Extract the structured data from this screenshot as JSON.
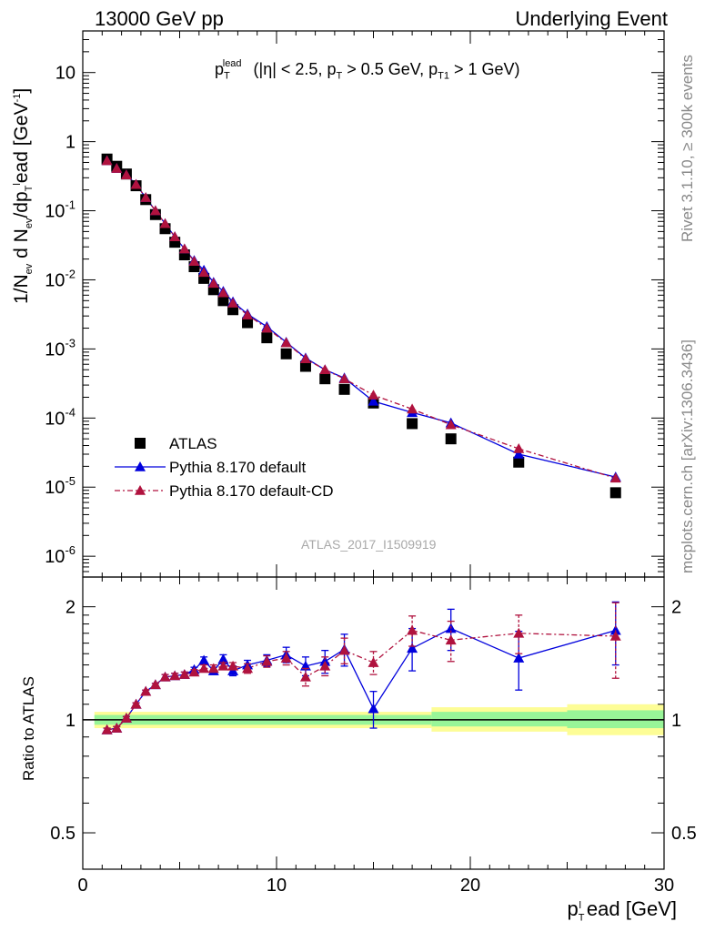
{
  "header": {
    "left": "13000 GeV pp",
    "right": "Underlying Event"
  },
  "side_labels": {
    "rivet": "Rivet 3.1.10, ≥ 300k events",
    "mcplots": "mcplots.cern.ch [arXiv:1306.3436]"
  },
  "annotation": {
    "main": "p",
    "sub": "T",
    "sup": "lead",
    "cuts": " (|η| < 2.5, p",
    "cuts_sub1": "T",
    "cuts_mid": " > 0.5 GeV, p",
    "cuts_sub2": "T1",
    "cuts_end": " > 1 GeV)"
  },
  "watermark": "ATLAS_2017_I1509919",
  "axes": {
    "main_ylabel_a": "1/N",
    "main_ylabel_b": "ev",
    "main_ylabel_c": " d N",
    "main_ylabel_d": "ev",
    "main_ylabel_e": "/dp",
    "main_ylabel_f": "T",
    "main_ylabel_g": "l",
    "main_ylabel_h": "ead [GeV",
    "main_ylabel_i": "-1",
    "main_ylabel_j": "]",
    "ratio_ylabel": "Ratio to ATLAS",
    "xlabel_a": "p",
    "xlabel_sub": "T",
    "xlabel_sup": "l",
    "xlabel_b": "ead [GeV]"
  },
  "legend": [
    {
      "label": "ATLAS",
      "color": "#000000",
      "marker": "square"
    },
    {
      "label": "Pythia 8.170 default",
      "color": "#0000dd",
      "marker": "triangle",
      "line": "solid"
    },
    {
      "label": "Pythia 8.170 default-CD",
      "color": "#b0123e",
      "marker": "triangle",
      "line": "dashdot"
    }
  ],
  "chart_data": [
    {
      "type": "scatter",
      "panel": "main",
      "yscale": "log",
      "xlim": [
        0,
        30
      ],
      "ylim": [
        5e-07,
        40
      ],
      "x_ticks": [
        0,
        10,
        20,
        30
      ],
      "y_ticks": [
        "10^-6",
        "10^-5",
        "10^-4",
        "10^-3",
        "10^-2",
        "10^-1",
        "1",
        "10"
      ],
      "y_tick_values": [
        1e-06,
        1e-05,
        0.0001,
        0.001,
        0.01,
        0.1,
        1,
        10
      ],
      "x": [
        1.25,
        1.75,
        2.25,
        2.75,
        3.25,
        3.75,
        4.25,
        4.75,
        5.25,
        5.75,
        6.25,
        6.75,
        7.25,
        7.75,
        8.5,
        9.5,
        10.5,
        11.5,
        12.5,
        13.5,
        15,
        17,
        19,
        22.5,
        27.5
      ],
      "series": [
        {
          "name": "ATLAS",
          "color": "#000000",
          "values": [
            0.56,
            0.44,
            0.34,
            0.23,
            0.145,
            0.088,
            0.055,
            0.035,
            0.023,
            0.0155,
            0.0105,
            0.0072,
            0.005,
            0.0037,
            0.0024,
            0.00145,
            0.00085,
            0.00056,
            0.00037,
            0.00026,
            0.000165,
            8.3e-05,
            5e-05,
            2.3e-05,
            8.3e-06
          ]
        },
        {
          "name": "Pythia 8.170 default",
          "color": "#0000dd",
          "values": [
            0.53,
            0.41,
            0.33,
            0.24,
            0.155,
            0.1,
            0.065,
            0.042,
            0.028,
            0.019,
            0.0138,
            0.0092,
            0.0068,
            0.0048,
            0.0032,
            0.0021,
            0.00125,
            0.00074,
            0.0005,
            0.00038,
            0.000175,
            0.00012,
            8.5e-05,
            3e-05,
            1.4e-05
          ]
        },
        {
          "name": "Pythia 8.170 default-CD",
          "color": "#b0123e",
          "values": [
            0.53,
            0.41,
            0.33,
            0.24,
            0.155,
            0.1,
            0.065,
            0.042,
            0.028,
            0.0185,
            0.0128,
            0.0089,
            0.0065,
            0.0046,
            0.0031,
            0.002,
            0.00123,
            0.00072,
            0.0005,
            0.00037,
            0.000215,
            0.000135,
            8e-05,
            3.6e-05,
            1.35e-05
          ]
        }
      ]
    },
    {
      "type": "scatter",
      "panel": "ratio",
      "yscale": "log",
      "xlim": [
        0,
        30
      ],
      "ylim": [
        0.4,
        2.4
      ],
      "ylabel": "Ratio to ATLAS",
      "y_ticks": [
        "0.5",
        "1",
        "2"
      ],
      "y_tick_values": [
        0.5,
        1,
        2
      ],
      "x": [
        1.25,
        1.75,
        2.25,
        2.75,
        3.25,
        3.75,
        4.25,
        4.75,
        5.25,
        5.75,
        6.25,
        6.75,
        7.25,
        7.75,
        8.5,
        9.5,
        10.5,
        11.5,
        12.5,
        13.5,
        15,
        17,
        19,
        22.5,
        27.5
      ],
      "series": [
        {
          "name": "Pythia 8.170 default",
          "color": "#0000dd",
          "values": [
            0.94,
            0.95,
            1.01,
            1.1,
            1.19,
            1.24,
            1.3,
            1.31,
            1.32,
            1.36,
            1.44,
            1.35,
            1.45,
            1.35,
            1.4,
            1.44,
            1.49,
            1.39,
            1.43,
            1.54,
            1.07,
            1.55,
            1.75,
            1.46,
            1.73
          ],
          "errors": [
            0.01,
            0.01,
            0.01,
            0.01,
            0.01,
            0.01,
            0.02,
            0.02,
            0.02,
            0.02,
            0.03,
            0.03,
            0.04,
            0.04,
            0.04,
            0.05,
            0.07,
            0.08,
            0.1,
            0.15,
            0.12,
            0.2,
            0.22,
            0.26,
            0.33
          ]
        },
        {
          "name": "Pythia 8.170 default-CD",
          "color": "#b0123e",
          "values": [
            0.94,
            0.95,
            1.01,
            1.1,
            1.19,
            1.24,
            1.3,
            1.31,
            1.32,
            1.34,
            1.37,
            1.37,
            1.39,
            1.39,
            1.37,
            1.43,
            1.46,
            1.3,
            1.39,
            1.53,
            1.42,
            1.73,
            1.63,
            1.7,
            1.67
          ],
          "errors": [
            0.01,
            0.01,
            0.01,
            0.01,
            0.01,
            0.01,
            0.02,
            0.02,
            0.02,
            0.02,
            0.03,
            0.03,
            0.03,
            0.03,
            0.04,
            0.05,
            0.06,
            0.07,
            0.08,
            0.12,
            0.1,
            0.16,
            0.2,
            0.2,
            0.38
          ]
        }
      ],
      "bands": [
        {
          "x0": 0.6,
          "x1": 18,
          "yellow": [
            0.95,
            1.05
          ],
          "green": [
            0.97,
            1.03
          ]
        },
        {
          "x0": 18,
          "x1": 25,
          "yellow": [
            0.93,
            1.08
          ],
          "green": [
            0.96,
            1.05
          ]
        },
        {
          "x0": 25,
          "x1": 30,
          "yellow": [
            0.91,
            1.1
          ],
          "green": [
            0.95,
            1.06
          ]
        }
      ]
    }
  ]
}
